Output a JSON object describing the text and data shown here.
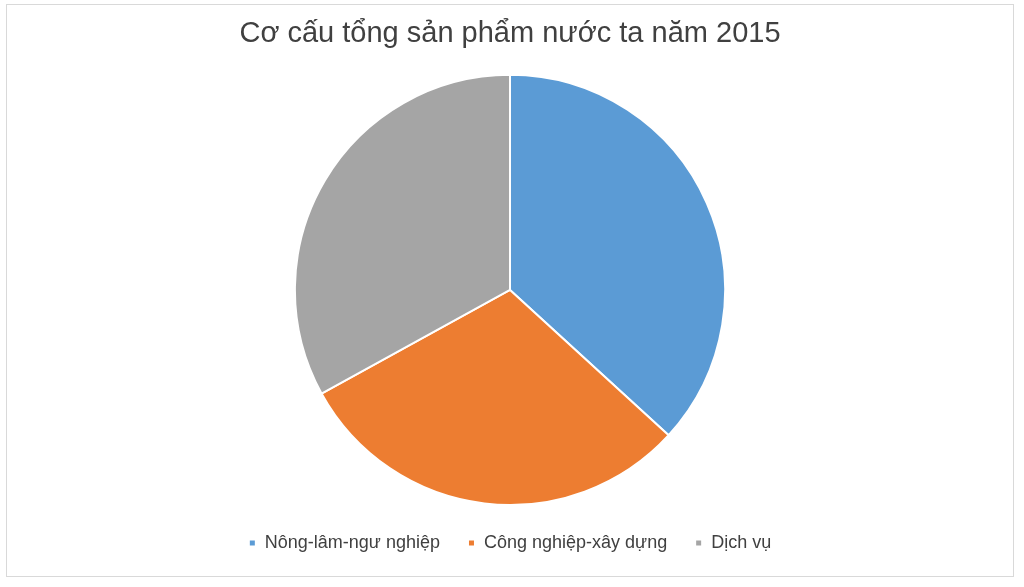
{
  "chart_data": {
    "type": "pie",
    "title": "Cơ cấu tổng sản phẩm nước ta năm 2015",
    "categories": [
      "Nông-lâm-ngư nghiệp",
      "Công nghiệp-xây dựng",
      "Dịch vụ"
    ],
    "values": [
      36.8,
      30.2,
      33.0
    ],
    "colors": [
      "#5b9bd5",
      "#ed7d31",
      "#a5a5a5"
    ],
    "legend": "bottom"
  }
}
